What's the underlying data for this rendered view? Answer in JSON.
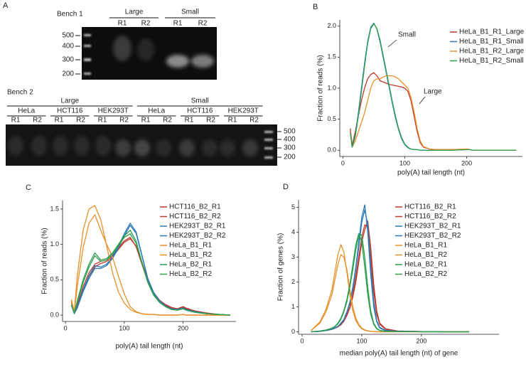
{
  "panel_a": {
    "label": "A",
    "bench1": {
      "title": "Bench 1",
      "groups": [
        {
          "name": "Large",
          "lanes": [
            "R1",
            "R2"
          ]
        },
        {
          "name": "Small",
          "lanes": [
            "R1",
            "R2"
          ]
        }
      ],
      "ladder": [
        "500",
        "400",
        "300",
        "200"
      ]
    },
    "bench2": {
      "title": "Bench 2",
      "groups": [
        {
          "name": "Large",
          "cells": [
            {
              "name": "HeLa",
              "lanes": [
                "R1",
                "R2"
              ]
            },
            {
              "name": "HCT116",
              "lanes": [
                "R1",
                "R2"
              ]
            },
            {
              "name": "HEK293T",
              "lanes": [
                "R1",
                "R2"
              ]
            }
          ]
        },
        {
          "name": "Small",
          "cells": [
            {
              "name": "HeLa",
              "lanes": [
                "R1",
                "R2"
              ]
            },
            {
              "name": "HCT116",
              "lanes": [
                "R1",
                "R2"
              ]
            },
            {
              "name": "HEK293T",
              "lanes": [
                "R1",
                "R2"
              ]
            }
          ]
        }
      ],
      "ladder": [
        "500",
        "400",
        "300",
        "200"
      ]
    }
  },
  "chart_data": [
    {
      "type": "line",
      "panel": "B",
      "x_label": "poly(A) tail length (nt)",
      "y_label": "Fraction of reads (%)",
      "xlim": [
        -5,
        290
      ],
      "ylim": [
        -0.1,
        2.1
      ],
      "xticks": [
        0,
        100,
        200
      ],
      "yticks": [
        {
          "value": 0,
          "label": "0.0"
        },
        {
          "value": 0.5,
          "label": "0.5"
        },
        {
          "value": 1,
          "label": "1.0"
        },
        {
          "value": 1.5,
          "label": "1.5"
        },
        {
          "value": 2,
          "label": "2.0"
        }
      ],
      "legend": "upper right",
      "annotations": [
        "Small",
        "Large"
      ],
      "x": [
        12,
        15,
        20,
        25,
        30,
        35,
        40,
        45,
        50,
        55,
        60,
        65,
        70,
        75,
        80,
        85,
        90,
        95,
        100,
        105,
        110,
        115,
        120,
        125,
        130,
        140,
        150,
        175,
        200,
        205,
        210,
        250,
        280
      ],
      "series": [
        {
          "name": "HeLa_B1_R1_Large",
          "color": "#c0392b",
          "values": [
            0.35,
            0.08,
            0.3,
            0.55,
            0.8,
            1.0,
            1.15,
            1.22,
            1.25,
            1.2,
            1.12,
            1.1,
            1.08,
            1.06,
            1.05,
            1.04,
            1.03,
            1.02,
            1.0,
            0.95,
            0.8,
            0.55,
            0.3,
            0.12,
            0.05,
            0.02,
            0.01,
            0.01,
            0.02,
            0.01,
            0,
            0,
            0
          ]
        },
        {
          "name": "HeLa_B1_R1_Small",
          "color": "#2a7ab8",
          "values": [
            0.3,
            0.05,
            0.25,
            0.6,
            1.0,
            1.4,
            1.75,
            1.98,
            2.05,
            1.95,
            1.75,
            1.5,
            1.25,
            1.0,
            0.75,
            0.52,
            0.33,
            0.18,
            0.09,
            0.04,
            0.02,
            0.01,
            0.01,
            0,
            0,
            0,
            0,
            0,
            0.01,
            0.01,
            0,
            0,
            0
          ]
        },
        {
          "name": "HeLa_B1_R2_Large",
          "color": "#e8902a",
          "values": [
            0.3,
            0.05,
            0.15,
            0.3,
            0.45,
            0.6,
            0.8,
            1.0,
            1.12,
            1.15,
            1.15,
            1.18,
            1.2,
            1.2,
            1.2,
            1.18,
            1.15,
            1.1,
            1.05,
            1.0,
            0.85,
            0.62,
            0.35,
            0.15,
            0.06,
            0.02,
            0.01,
            0.01,
            0.02,
            0.01,
            0,
            0,
            0
          ]
        },
        {
          "name": "HeLa_B1_R2_Small",
          "color": "#2e9e4f",
          "values": [
            0.28,
            0.05,
            0.22,
            0.55,
            0.95,
            1.35,
            1.72,
            1.96,
            2.04,
            1.96,
            1.78,
            1.53,
            1.28,
            1.03,
            0.78,
            0.55,
            0.35,
            0.2,
            0.1,
            0.05,
            0.02,
            0.01,
            0.01,
            0,
            0,
            0,
            0,
            0,
            0.01,
            0.01,
            0,
            0,
            0
          ]
        }
      ]
    },
    {
      "type": "line",
      "panel": "C",
      "x_label": "poly(A) tail length (nt)",
      "y_label": "Fraction of reads (%)",
      "xlim": [
        -5,
        290
      ],
      "ylim": [
        -0.09,
        1.62
      ],
      "xticks": [
        0,
        100,
        200
      ],
      "yticks": [
        {
          "value": 0,
          "label": "0.0"
        },
        {
          "value": 0.5,
          "label": "0.5"
        },
        {
          "value": 1,
          "label": "1.0"
        },
        {
          "value": 1.5,
          "label": "1.5"
        }
      ],
      "legend": "right",
      "x": [
        10,
        15,
        20,
        30,
        40,
        50,
        60,
        70,
        80,
        90,
        100,
        110,
        120,
        130,
        140,
        150,
        160,
        170,
        180,
        190,
        200,
        205,
        220,
        240,
        260,
        280
      ],
      "series": [
        {
          "name": "HCT116_B2_R1",
          "color": "#c0392b",
          "values": [
            0.2,
            0.03,
            0.15,
            0.4,
            0.6,
            0.72,
            0.76,
            0.78,
            0.84,
            0.95,
            1.05,
            1.1,
            0.97,
            0.72,
            0.47,
            0.3,
            0.2,
            0.14,
            0.1,
            0.09,
            0.12,
            0.1,
            0.06,
            0.03,
            0.01,
            0
          ]
        },
        {
          "name": "HCT116_B2_R2",
          "color": "#c0392b",
          "values": [
            0.18,
            0.03,
            0.12,
            0.35,
            0.55,
            0.68,
            0.73,
            0.76,
            0.82,
            0.93,
            1.03,
            1.08,
            0.98,
            0.75,
            0.5,
            0.32,
            0.21,
            0.15,
            0.11,
            0.09,
            0.11,
            0.09,
            0.05,
            0.02,
            0.01,
            0
          ]
        },
        {
          "name": "HEK293T_B2_R1",
          "color": "#2a7ab8",
          "values": [
            0.15,
            0.02,
            0.12,
            0.36,
            0.56,
            0.7,
            0.68,
            0.72,
            0.82,
            0.98,
            1.15,
            1.3,
            1.18,
            0.85,
            0.52,
            0.32,
            0.2,
            0.13,
            0.09,
            0.08,
            0.1,
            0.08,
            0.05,
            0.02,
            0.01,
            0
          ]
        },
        {
          "name": "HEK293T_B2_R2",
          "color": "#2a7ab8",
          "values": [
            0.14,
            0.02,
            0.1,
            0.33,
            0.52,
            0.66,
            0.66,
            0.7,
            0.8,
            0.95,
            1.12,
            1.27,
            1.16,
            0.84,
            0.51,
            0.31,
            0.2,
            0.13,
            0.09,
            0.08,
            0.1,
            0.08,
            0.05,
            0.02,
            0.01,
            0
          ]
        },
        {
          "name": "HeLa_B1_R1",
          "color": "#e8902a",
          "values": [
            0.22,
            0.05,
            0.55,
            1.2,
            1.5,
            1.55,
            1.35,
            0.98,
            0.6,
            0.33,
            0.17,
            0.08,
            0.04,
            0.02,
            0.01,
            0.01,
            0,
            0,
            0,
            0,
            0.01,
            0,
            0,
            0,
            0,
            0
          ]
        },
        {
          "name": "HeLa_B1_R2",
          "color": "#e8902a",
          "values": [
            0.2,
            0.04,
            0.4,
            0.95,
            1.3,
            1.42,
            1.2,
            1.0,
            0.82,
            0.55,
            0.3,
            0.12,
            0.05,
            0.02,
            0.01,
            0.01,
            0,
            0,
            0,
            0,
            0.01,
            0,
            0,
            0,
            0,
            0
          ]
        },
        {
          "name": "HeLa_B2_R1",
          "color": "#2e9e4f",
          "values": [
            0.15,
            0.03,
            0.2,
            0.5,
            0.72,
            0.88,
            0.78,
            0.8,
            0.88,
            1.0,
            1.12,
            1.2,
            1.05,
            0.75,
            0.47,
            0.29,
            0.18,
            0.12,
            0.08,
            0.07,
            0.09,
            0.07,
            0.04,
            0.02,
            0.01,
            0
          ]
        },
        {
          "name": "HeLa_B2_R2",
          "color": "#2e9e4f",
          "values": [
            0.14,
            0.03,
            0.18,
            0.46,
            0.68,
            0.84,
            0.76,
            0.78,
            0.86,
            0.98,
            1.1,
            1.15,
            1.02,
            0.74,
            0.46,
            0.28,
            0.18,
            0.12,
            0.08,
            0.07,
            0.09,
            0.07,
            0.04,
            0.02,
            0.01,
            0
          ]
        }
      ]
    },
    {
      "type": "line",
      "panel": "D",
      "x_label": "median poly(A) tail length (nt) of gene",
      "y_label": "Fraction of genes (%)",
      "xlim": [
        -6,
        330
      ],
      "ylim": [
        -0.1,
        5.3
      ],
      "xticks": [
        0,
        100,
        200
      ],
      "yticks": [
        0,
        1,
        2,
        3,
        4,
        5
      ],
      "legend": "upper right",
      "x": [
        15,
        30,
        40,
        50,
        55,
        60,
        65,
        70,
        75,
        80,
        85,
        90,
        95,
        100,
        105,
        110,
        115,
        120,
        125,
        130,
        140,
        160,
        200,
        240,
        280
      ],
      "series": [
        {
          "name": "HCT116_B2_R1",
          "color": "#c0392b",
          "values": [
            0,
            0.02,
            0.05,
            0.1,
            0.15,
            0.2,
            0.3,
            0.45,
            0.7,
            1.0,
            1.5,
            2.2,
            3.0,
            3.8,
            4.3,
            4.2,
            3.0,
            1.6,
            0.7,
            0.3,
            0.1,
            0.03,
            0.01,
            0,
            0
          ]
        },
        {
          "name": "HCT116_B2_R2",
          "color": "#c0392b",
          "values": [
            0,
            0.02,
            0.05,
            0.1,
            0.14,
            0.2,
            0.28,
            0.42,
            0.65,
            0.95,
            1.4,
            2.0,
            2.8,
            3.6,
            4.1,
            4.45,
            3.4,
            1.9,
            0.85,
            0.35,
            0.12,
            0.03,
            0.01,
            0,
            0
          ]
        },
        {
          "name": "HEK293T_B2_R1",
          "color": "#2a7ab8",
          "values": [
            0,
            0.02,
            0.05,
            0.1,
            0.15,
            0.22,
            0.35,
            0.5,
            0.8,
            1.2,
            1.8,
            2.6,
            3.6,
            4.6,
            5.1,
            4.0,
            2.3,
            1.0,
            0.4,
            0.15,
            0.05,
            0.02,
            0.01,
            0,
            0
          ]
        },
        {
          "name": "HEK293T_B2_R2",
          "color": "#2a7ab8",
          "values": [
            0,
            0.02,
            0.05,
            0.1,
            0.15,
            0.22,
            0.33,
            0.48,
            0.78,
            1.15,
            1.7,
            2.5,
            3.4,
            4.4,
            4.9,
            4.3,
            2.6,
            1.2,
            0.45,
            0.18,
            0.06,
            0.02,
            0.01,
            0,
            0
          ]
        },
        {
          "name": "HeLa_B1_R1",
          "color": "#e8902a",
          "values": [
            0.05,
            0.4,
            0.9,
            1.7,
            2.4,
            3.1,
            3.5,
            3.2,
            2.4,
            1.5,
            0.85,
            0.45,
            0.25,
            0.12,
            0.06,
            0.03,
            0.02,
            0.01,
            0,
            0,
            0,
            0,
            0,
            0,
            0
          ]
        },
        {
          "name": "HeLa_B1_R2",
          "color": "#e8902a",
          "values": [
            0.05,
            0.35,
            0.8,
            1.5,
            2.1,
            2.7,
            3.1,
            3.0,
            2.5,
            1.7,
            1.0,
            0.55,
            0.3,
            0.15,
            0.08,
            0.04,
            0.02,
            0.01,
            0,
            0,
            0,
            0,
            0,
            0,
            0
          ]
        },
        {
          "name": "HeLa_B2_R1",
          "color": "#2e9e4f",
          "values": [
            0,
            0.03,
            0.07,
            0.15,
            0.22,
            0.35,
            0.55,
            0.85,
            1.3,
            1.9,
            2.7,
            3.5,
            3.95,
            3.6,
            2.6,
            1.5,
            0.7,
            0.3,
            0.12,
            0.05,
            0.02,
            0.01,
            0,
            0,
            0
          ]
        },
        {
          "name": "HeLa_B2_R2",
          "color": "#2e9e4f",
          "values": [
            0,
            0.03,
            0.07,
            0.14,
            0.2,
            0.32,
            0.5,
            0.8,
            1.2,
            1.8,
            2.5,
            3.3,
            3.85,
            3.9,
            3.0,
            1.8,
            0.85,
            0.35,
            0.14,
            0.06,
            0.02,
            0.01,
            0,
            0,
            0
          ]
        }
      ]
    }
  ]
}
